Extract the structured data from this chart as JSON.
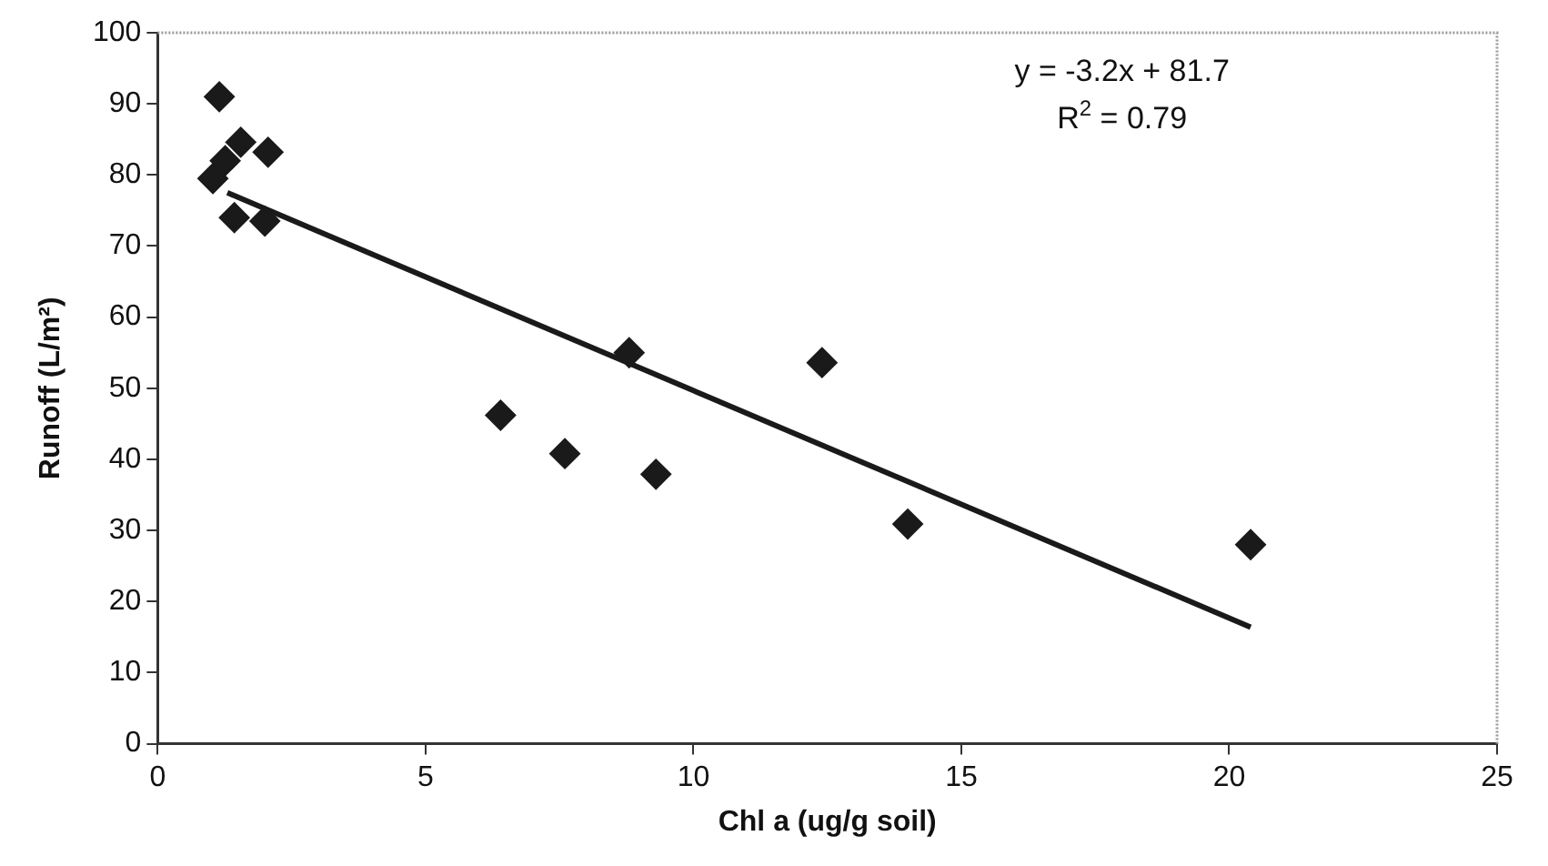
{
  "chart_data": {
    "type": "scatter",
    "xlabel": "Chl a (ug/g soil)",
    "ylabel": "Runoff (L/m²)",
    "xlim": [
      0,
      25
    ],
    "xticks": [
      0,
      5,
      10,
      15,
      20,
      25
    ],
    "ylim": [
      0,
      100
    ],
    "yticks": [
      0,
      10,
      20,
      30,
      40,
      50,
      60,
      70,
      80,
      90,
      100
    ],
    "grid": false,
    "legend": false,
    "marker": "diamond",
    "series": [
      {
        "color": "#1a1a1a",
        "x": [
          1.15,
          1.55,
          2.06,
          1.26,
          1.03,
          1.43,
          2.0,
          8.8,
          12.4,
          6.4,
          7.6,
          9.3,
          14.0,
          20.4
        ],
        "values": [
          91,
          84.6,
          83.2,
          82,
          79.5,
          74,
          73.5,
          55,
          53.6,
          46.2,
          40.8,
          37.9,
          30.9,
          28
        ]
      },
      {
        "type": "line",
        "color": "#1a1a1a",
        "x": [
          1.3,
          20.4
        ],
        "values": [
          77.5,
          16.4
        ],
        "marker": "none"
      }
    ],
    "annotations": [
      "y = -3.2x + 81.7",
      "R$^{2}$ = 0.79"
    ]
  }
}
